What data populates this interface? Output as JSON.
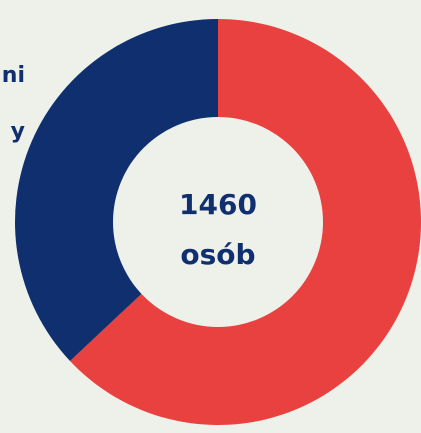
{
  "chart_data": {
    "type": "donut",
    "side_texts": [
      "ni",
      "y"
    ],
    "center_texts": [
      "1460",
      "osób"
    ],
    "values": [
      63,
      37
    ],
    "colors": [
      "#e8413f",
      "#102f6f"
    ],
    "background": "#eef0ea"
  }
}
